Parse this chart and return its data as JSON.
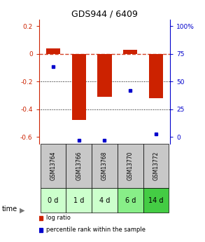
{
  "title": "GDS944 / 6409",
  "samples": [
    "GSM13764",
    "GSM13766",
    "GSM13768",
    "GSM13770",
    "GSM13772"
  ],
  "time_labels": [
    "0 d",
    "1 d",
    "4 d",
    "6 d",
    "14 d"
  ],
  "log_ratios": [
    0.04,
    -0.48,
    -0.31,
    0.03,
    -0.32
  ],
  "percentile_ranks": [
    0.62,
    0.03,
    0.03,
    0.43,
    0.08
  ],
  "bar_color": "#cc2200",
  "dot_color": "#0000cc",
  "ylim": [
    -0.65,
    0.25
  ],
  "y_left_ticks": [
    0.2,
    0.0,
    -0.2,
    -0.4,
    -0.6
  ],
  "y_right_ticks": [
    "100%",
    "75",
    "50",
    "25",
    "0"
  ],
  "y_right_tick_positions": [
    0.2,
    0.0,
    -0.2,
    -0.4,
    -0.6
  ],
  "grid_lines_dotted": [
    -0.2,
    -0.4
  ],
  "dashed_line_y": 0.0,
  "background_color": "#ffffff",
  "plot_bg_color": "#ffffff",
  "time_row_colors": [
    "#ccffcc",
    "#ccffcc",
    "#ccffcc",
    "#88ee88",
    "#44cc44"
  ],
  "gsm_row_color": "#c8c8c8",
  "bar_width": 0.55
}
